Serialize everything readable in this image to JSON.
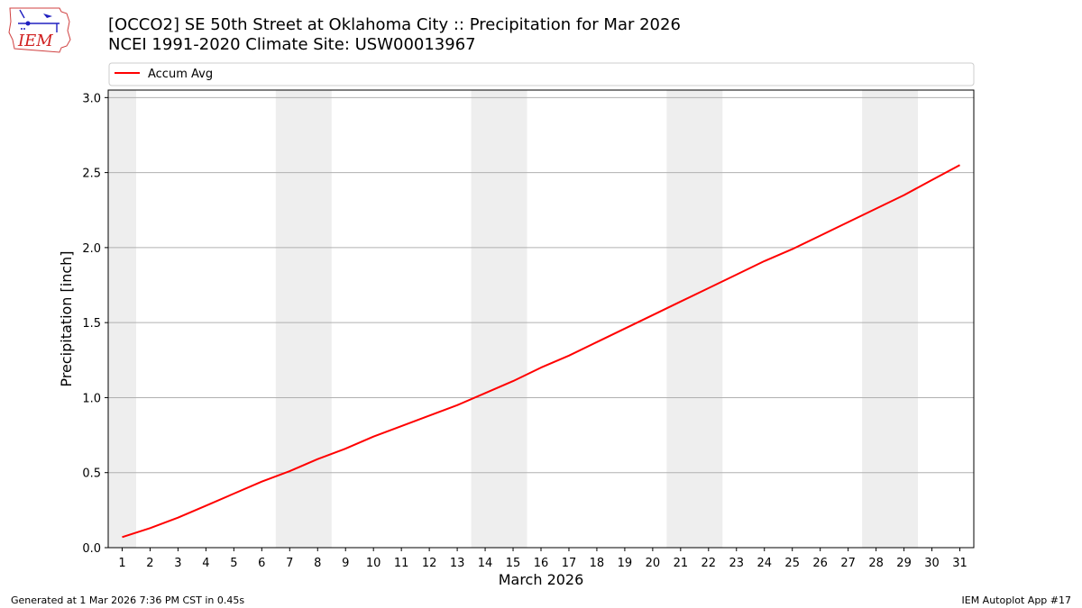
{
  "header": {
    "title_line1": "[OCCO2] SE 50th Street at Oklahoma City :: Precipitation for Mar 2026",
    "title_line2": "NCEI 1991-2020 Climate Site: USW00013967"
  },
  "logo": {
    "text": "IEM",
    "icon": "iem-logo-icon"
  },
  "footer": {
    "generated": "Generated at 1 Mar 2026 7:36 PM CST in 0.45s",
    "app": "IEM Autoplot App #17"
  },
  "colors": {
    "series": "#ff0000",
    "weekend_band": "#eeeeee",
    "grid": "#b0b0b0"
  },
  "chart_data": {
    "type": "line",
    "xlabel": "March 2026",
    "ylabel": "Precipitation [inch]",
    "xlim": [
      0.5,
      31.5
    ],
    "ylim": [
      0,
      3.05
    ],
    "x_ticks": [
      1,
      2,
      3,
      4,
      5,
      6,
      7,
      8,
      9,
      10,
      11,
      12,
      13,
      14,
      15,
      16,
      17,
      18,
      19,
      20,
      21,
      22,
      23,
      24,
      25,
      26,
      27,
      28,
      29,
      30,
      31
    ],
    "y_ticks": [
      0.0,
      0.5,
      1.0,
      1.5,
      2.0,
      2.5,
      3.0
    ],
    "y_tick_labels": [
      "0.0",
      "0.5",
      "1.0",
      "1.5",
      "2.0",
      "2.5",
      "3.0"
    ],
    "grid": "horizontal",
    "legend": "top",
    "weekend_bands": [
      [
        1,
        1
      ],
      [
        7,
        8
      ],
      [
        14,
        15
      ],
      [
        21,
        22
      ],
      [
        28,
        29
      ]
    ],
    "series": [
      {
        "name": "Accum Avg",
        "x": [
          1,
          2,
          3,
          4,
          5,
          6,
          7,
          8,
          9,
          10,
          11,
          12,
          13,
          14,
          15,
          16,
          17,
          18,
          19,
          20,
          21,
          22,
          23,
          24,
          25,
          26,
          27,
          28,
          29,
          30,
          31
        ],
        "values": [
          0.07,
          0.13,
          0.2,
          0.28,
          0.36,
          0.44,
          0.51,
          0.59,
          0.66,
          0.74,
          0.81,
          0.88,
          0.95,
          1.03,
          1.11,
          1.2,
          1.28,
          1.37,
          1.46,
          1.55,
          1.64,
          1.73,
          1.82,
          1.91,
          1.99,
          2.08,
          2.17,
          2.26,
          2.35,
          2.45,
          2.55
        ]
      }
    ]
  }
}
